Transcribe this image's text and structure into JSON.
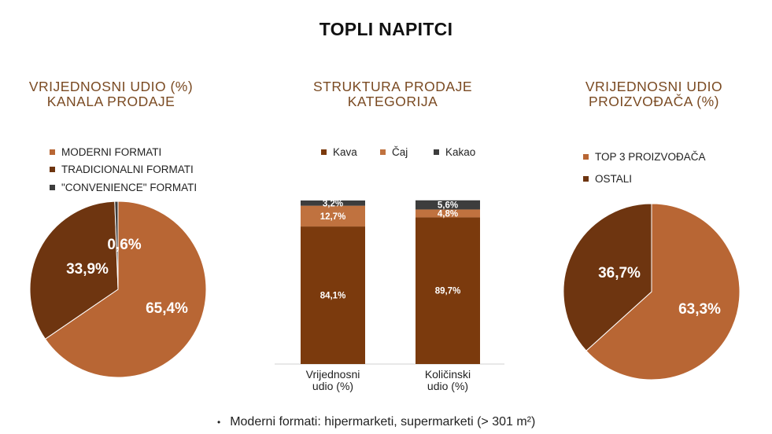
{
  "title": "TOPLI NAPITCI",
  "footnote": "Moderni formati: hipermarketi, supermarketi (> 301 m²)",
  "chart_data": [
    {
      "type": "pie",
      "title": "VRIJEDNOSNI UDIO (%)\nKANALA PRODAJE",
      "legend_position": "top-left",
      "slices": [
        {
          "name": "MODERNI FORMATI",
          "value": 65.4,
          "label": "65,4%",
          "color": "#b86634"
        },
        {
          "name": "TRADICIONALNI FORMATI",
          "value": 33.9,
          "label": "33,9%",
          "color": "#6e3510"
        },
        {
          "name": "\"CONVENIENCE\" FORMATI",
          "value": 0.6,
          "label": "0,6%",
          "color": "#3d3d3d"
        }
      ]
    },
    {
      "type": "bar",
      "stacked": true,
      "percent": true,
      "title": "STRUKTURA PRODAJE\nKATEGORIJA",
      "legend_position": "top",
      "categories": [
        "Vrijednosni udio (%)",
        "Količinski udio (%)"
      ],
      "series": [
        {
          "name": "Kava",
          "values": [
            84.1,
            89.7
          ],
          "labels": [
            "84,1%",
            "89,7%"
          ],
          "color": "#7b3a0d"
        },
        {
          "name": "Čaj",
          "values": [
            12.7,
            4.8
          ],
          "labels": [
            "12,7%",
            "4,8%"
          ],
          "color": "#c0723f"
        },
        {
          "name": "Kakao",
          "values": [
            3.2,
            5.6
          ],
          "labels": [
            "3,2%",
            "5,6%"
          ],
          "color": "#3d3d3d"
        }
      ],
      "ylim": [
        0,
        100
      ]
    },
    {
      "type": "pie",
      "title": "VRIJEDNOSNI UDIO\nPROIZVOĐAČA (%)",
      "legend_position": "top",
      "slices": [
        {
          "name": "TOP 3 PROIZVOĐAČA",
          "value": 63.3,
          "label": "63,3%",
          "color": "#b86634"
        },
        {
          "name": "OSTALI",
          "value": 36.7,
          "label": "36,7%",
          "color": "#6e3510"
        }
      ]
    }
  ]
}
